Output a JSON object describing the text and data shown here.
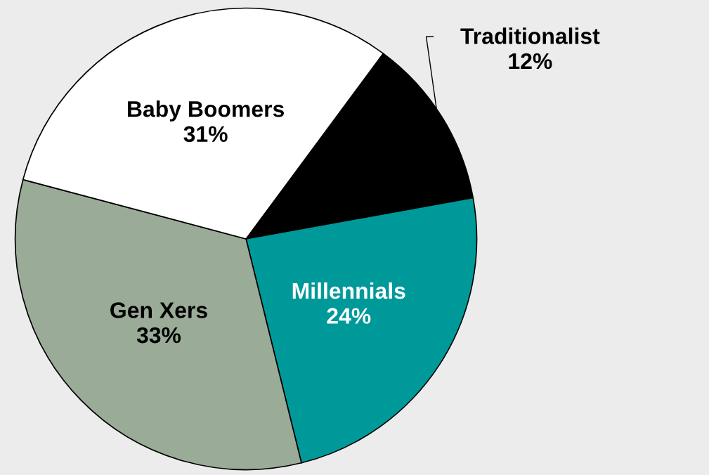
{
  "chart_data": {
    "type": "pie",
    "categories": [
      "Traditionalist",
      "Millennials",
      "Gen Xers",
      "Baby Boomers"
    ],
    "values": [
      12,
      24,
      33,
      31
    ],
    "value_labels": [
      "12%",
      "24%",
      "33%",
      "31%"
    ],
    "colors": [
      "#000000",
      "#009999",
      "#9aab98",
      "#ffffff"
    ]
  }
}
